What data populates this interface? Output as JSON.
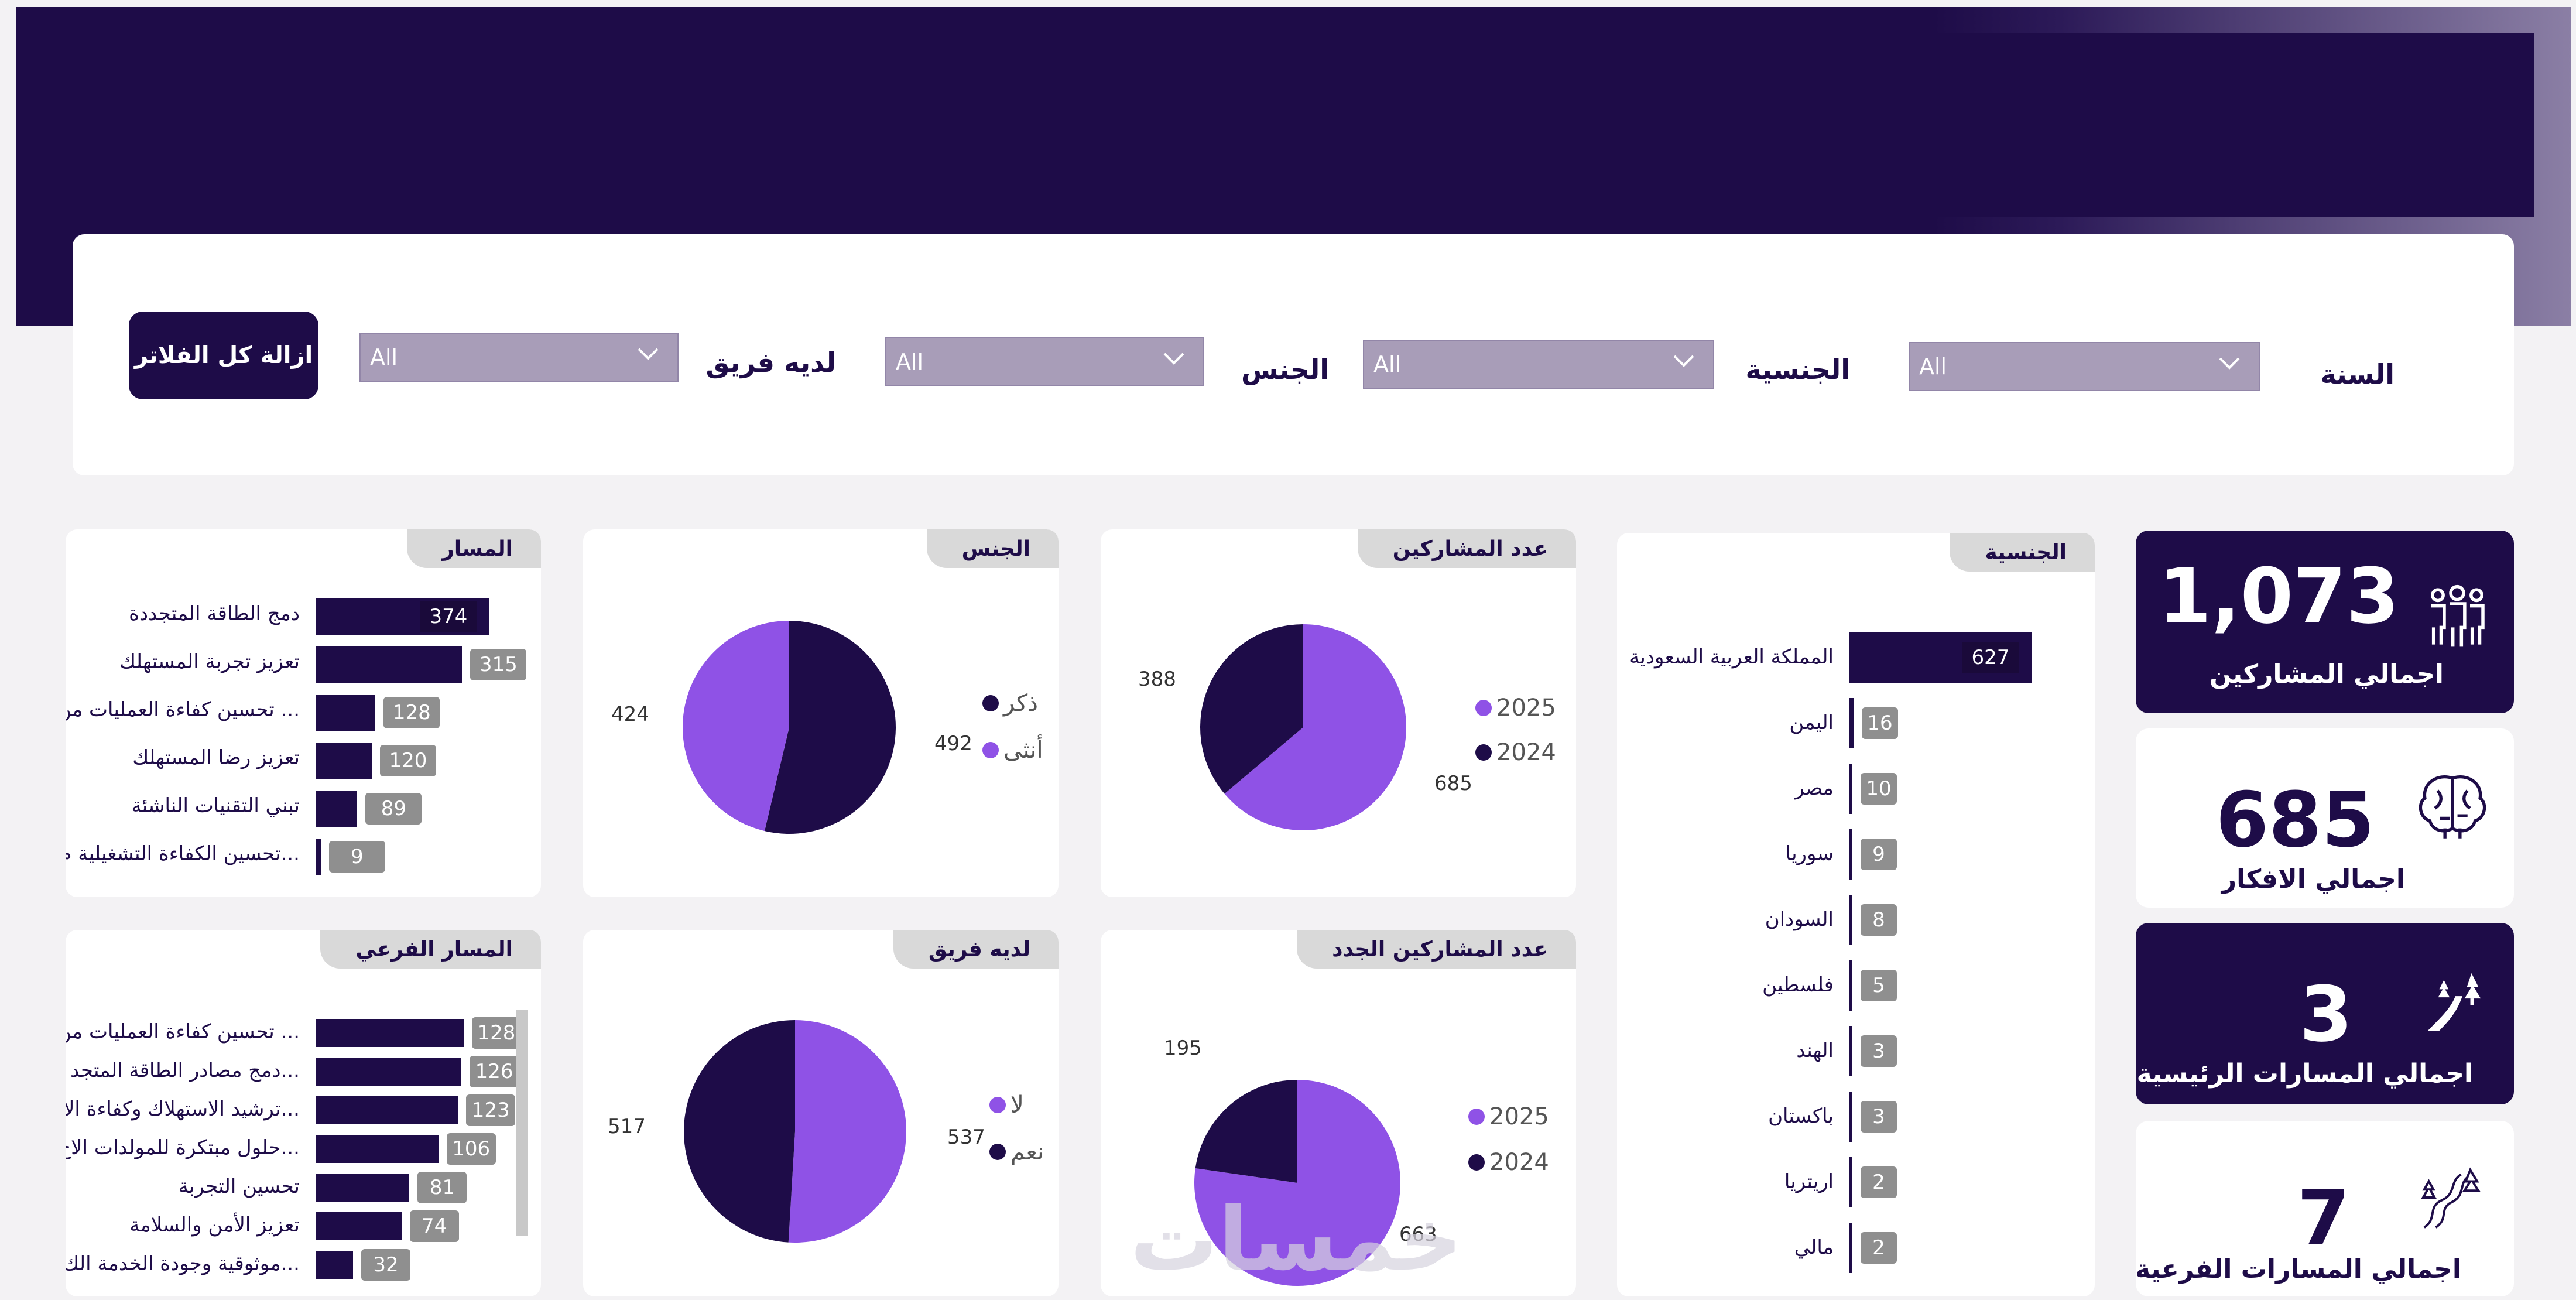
{
  "filters": {
    "year": {
      "label": "السنة",
      "value": "All"
    },
    "nationality": {
      "label": "الجنسية",
      "value": "All"
    },
    "gender": {
      "label": "الجنس",
      "value": "All"
    },
    "has_team": {
      "label": "لديه فريق",
      "value": "All"
    },
    "clear_label": "ازالة كل الفلاتر"
  },
  "kpis": {
    "participants": {
      "value": "1,073",
      "label": "اجمالي المشاركين",
      "icon": "people-icon"
    },
    "ideas": {
      "value": "685",
      "label": "اجمالي الافكار",
      "icon": "brain-icon"
    },
    "main_tracks": {
      "value": "3",
      "label": "اجمالي المسارات الرئيسية",
      "icon": "road-icon"
    },
    "sub_tracks": {
      "value": "7",
      "label": "اجمالي المسارات الفرعية",
      "icon": "winding-road-icon"
    }
  },
  "nationality_card": {
    "title": "الجنسية",
    "items": [
      {
        "label": "المملكة العربية السعودية",
        "value": 627
      },
      {
        "label": "اليمن",
        "value": 16
      },
      {
        "label": "مصر",
        "value": 10
      },
      {
        "label": "سوريا",
        "value": 9
      },
      {
        "label": "السودان",
        "value": 8
      },
      {
        "label": "فلسطين",
        "value": 5
      },
      {
        "label": "الهند",
        "value": 3
      },
      {
        "label": "باكستان",
        "value": 3
      },
      {
        "label": "اريتريا",
        "value": 2
      },
      {
        "label": "مالي",
        "value": 2
      }
    ]
  },
  "participants_card": {
    "title": "عدد المشاركين",
    "slices": [
      {
        "name": "2025",
        "value": 685,
        "color": "#8f52e6"
      },
      {
        "name": "2024",
        "value": 388,
        "color": "#1e0c48"
      }
    ]
  },
  "new_participants_card": {
    "title": "عدد المشاركين الجدد",
    "slices": [
      {
        "name": "2025",
        "value": 663,
        "color": "#8f52e6"
      },
      {
        "name": "2024",
        "value": 195,
        "color": "#1e0c48"
      }
    ]
  },
  "gender_card": {
    "title": "الجنس",
    "slices": [
      {
        "name": "ذكر",
        "value": 492,
        "color": "#1e0c48"
      },
      {
        "name": "أنثى",
        "value": 424,
        "color": "#8f52e6"
      }
    ]
  },
  "team_card": {
    "title": "لديه فريق",
    "slices": [
      {
        "name": "لا",
        "value": 537,
        "color": "#8f52e6"
      },
      {
        "name": "نعم",
        "value": 517,
        "color": "#1e0c48"
      }
    ]
  },
  "track_card": {
    "title": "المسار",
    "items": [
      {
        "label": "دمج الطاقة المتجددة",
        "value": 374
      },
      {
        "label": "تعزيز تجربة المستهلك",
        "value": 315
      },
      {
        "label": "تحسين كفاءة العمليات من ...",
        "value": 128
      },
      {
        "label": "تعزيز رضا المستهلك",
        "value": 120
      },
      {
        "label": "تبني التقنيات الناشئة",
        "value": 89
      },
      {
        "label": "تحسين الكفاءة التشغيلية م...",
        "value": 9
      }
    ]
  },
  "subtrack_card": {
    "title": "المسار الفرعي",
    "items": [
      {
        "label": "تحسين كفاءة العمليات من ...",
        "value": 128
      },
      {
        "label": "دمج مصادر الطاقة المتجد...",
        "value": 126
      },
      {
        "label": "ترشيد الاستهلاك وكفاءة الا...",
        "value": 123
      },
      {
        "label": "حلول مبتكرة للمولدات الاح...",
        "value": 106
      },
      {
        "label": "تحسين التجربة",
        "value": 81
      },
      {
        "label": "تعزيز الأمن والسلامة",
        "value": 74
      },
      {
        "label": "موثوقية وجودة الخدمة الك...",
        "value": 32
      }
    ]
  },
  "watermark": "خمسات",
  "colors": {
    "dark": "#1e0c48",
    "purple": "#8f52e6",
    "grey_badge": "#8f8f8f"
  }
}
